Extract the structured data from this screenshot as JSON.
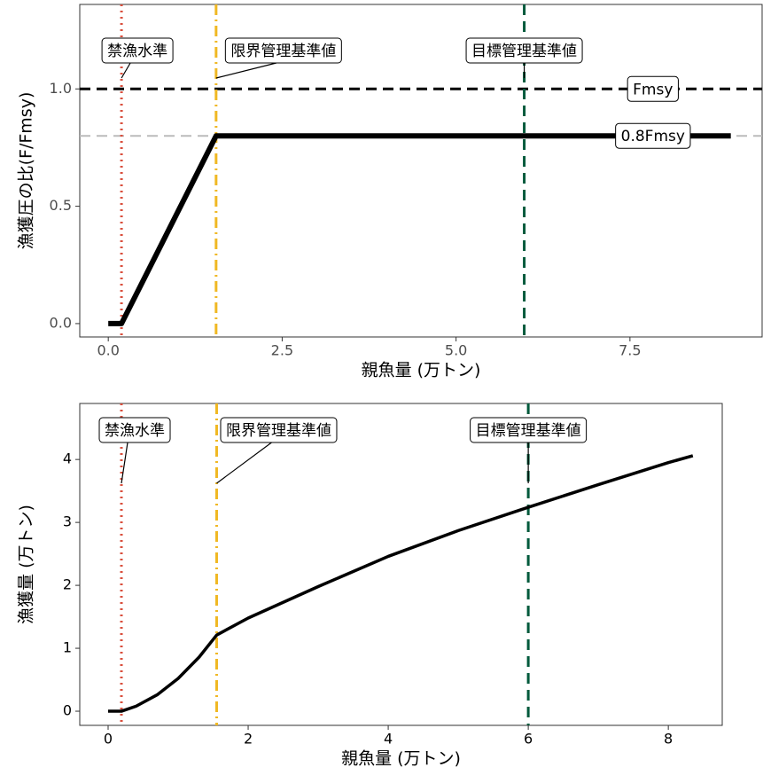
{
  "chart_data": [
    {
      "type": "line",
      "x_label": "親魚量 (万トン)",
      "y_label": "漁獲圧の比(F/Fmsy)",
      "x": [
        0,
        0.19,
        1.55,
        8.95
      ],
      "values": [
        0,
        0,
        0.8,
        0.8
      ],
      "color": "#000000",
      "xlim": [
        -0.41,
        9.4
      ],
      "ylim": [
        -0.057,
        1.36
      ],
      "xticks": [
        {
          "value": 0,
          "label": "0.0"
        },
        2.5,
        {
          "value": 5,
          "label": "5.0"
        },
        7.5
      ],
      "yticks": [
        {
          "value": 0,
          "label": "0.0"
        },
        0.5,
        {
          "value": 1,
          "label": "1.0"
        }
      ],
      "vlines": [
        {
          "label": "禁漁水準",
          "x": 0.19,
          "color": "#d94f3d",
          "style": "dotted"
        },
        {
          "label": "限界管理基準値",
          "x": 1.55,
          "color": "#f0b823",
          "style": "dashdot"
        },
        {
          "label": "目標管理基準値",
          "x": 5.98,
          "color": "#005a3c",
          "style": "dashed"
        }
      ],
      "hlines": [
        {
          "label": "Fmsy",
          "y": 1.0,
          "color": "#000000",
          "style": "dashed"
        },
        {
          "label": "0.8Fmsy",
          "y": 0.8,
          "color": "#bbbbbb",
          "style": "dashed"
        }
      ]
    },
    {
      "type": "line",
      "x_label": "親魚量 (万トン)",
      "y_label": "漁獲量 (万トン)",
      "x": [
        0,
        0.19,
        0.4,
        0.7,
        1.0,
        1.3,
        1.55,
        2,
        3,
        4,
        5,
        6,
        7,
        8,
        8.35
      ],
      "values": [
        0,
        0,
        0.08,
        0.26,
        0.52,
        0.86,
        1.21,
        1.48,
        1.98,
        2.46,
        2.87,
        3.24,
        3.6,
        3.95,
        4.06
      ],
      "color": "#000000",
      "xlim": [
        -0.405,
        8.77
      ],
      "ylim": [
        -0.225,
        4.89
      ],
      "xticks": [
        0,
        2,
        4,
        6,
        8
      ],
      "yticks": [
        0,
        1,
        2,
        3,
        4
      ],
      "vlines": [
        {
          "label": "禁漁水準",
          "x": 0.19,
          "color": "#d94f3d",
          "style": "dotted"
        },
        {
          "label": "限界管理基準値",
          "x": 1.55,
          "color": "#f0b823",
          "style": "dashdot"
        },
        {
          "label": "目標管理基準値",
          "x": 6.0,
          "color": "#005a3c",
          "style": "dashed"
        }
      ],
      "hlines": []
    }
  ]
}
